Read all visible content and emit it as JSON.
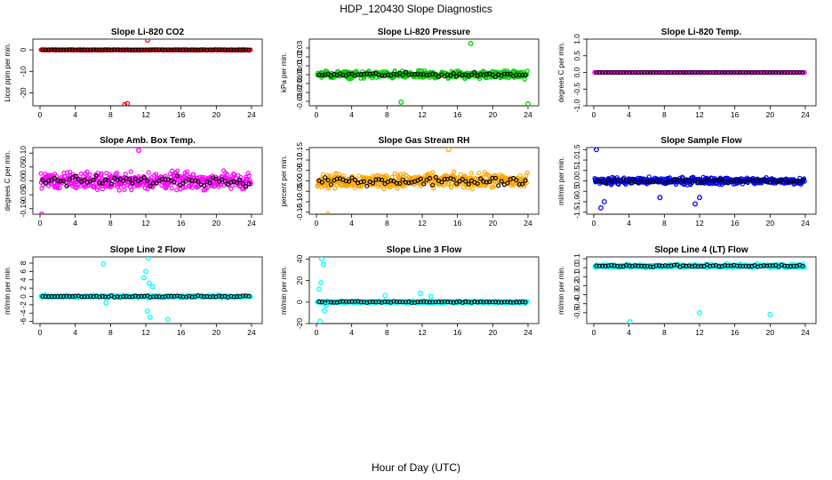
{
  "figure": {
    "title": "HDP_120430  Slope Diagnostics",
    "xlabel": "Hour of Day (UTC)"
  },
  "chart_data": [
    {
      "type": "scatter",
      "title": "Slope Li-820 CO2",
      "ylabel": "Licor ppm per min.",
      "color": "#ff0000",
      "xlim": [
        0,
        24
      ],
      "xticks": [
        0,
        4,
        8,
        12,
        16,
        20,
        24
      ],
      "ylim": [
        -26,
        5
      ],
      "yticks": [
        0,
        -10,
        -20
      ],
      "base": 0,
      "noise": 0.25,
      "outliers": [
        [
          12.2,
          4.5
        ],
        [
          9.6,
          -25.5
        ],
        [
          9.9,
          -25
        ]
      ]
    },
    {
      "type": "scatter",
      "title": "Slope Li-820 Pressure",
      "ylabel": "kPa per min.",
      "color": "#00cc00",
      "xlim": [
        0,
        24
      ],
      "xticks": [
        0,
        4,
        8,
        12,
        16,
        20,
        24
      ],
      "ylim": [
        -0.035,
        0.04
      ],
      "yticks": [
        0.03,
        0.02,
        0.01,
        0.0,
        -0.01,
        -0.02,
        -0.03
      ],
      "base": 0,
      "noise": 0.006,
      "outliers": [
        [
          17.5,
          0.035
        ],
        [
          24,
          -0.033
        ],
        [
          9.6,
          -0.031
        ]
      ]
    },
    {
      "type": "scatter",
      "title": "Slope Li-820 Temp.",
      "ylabel": "degrees C per min.",
      "color": "#ff00ff",
      "xlim": [
        0,
        24
      ],
      "xticks": [
        0,
        4,
        8,
        12,
        16,
        20,
        24
      ],
      "ylim": [
        -1.0,
        1.0
      ],
      "yticks": [
        1.0,
        0.5,
        0.0,
        -0.5,
        -1.0
      ],
      "base": 0,
      "noise": 0.0,
      "outliers": []
    },
    {
      "type": "scatter",
      "title": "Slope Amb. Box Temp.",
      "ylabel": "degrees C per min.",
      "color": "#ff00ff",
      "xlim": [
        0,
        24
      ],
      "xticks": [
        0,
        4,
        8,
        12,
        16,
        20,
        24
      ],
      "ylim": [
        -0.12,
        0.12
      ],
      "yticks": [
        0.1,
        0.05,
        0.0,
        -0.05,
        -0.1
      ],
      "base": 0,
      "noise": 0.045,
      "outliers": [
        [
          11.2,
          0.11
        ],
        [
          0.2,
          -0.12
        ]
      ]
    },
    {
      "type": "scatter",
      "title": "Slope Gas Stream RH",
      "ylabel": "percent per min.",
      "color": "#ffa500",
      "xlim": [
        0,
        24
      ],
      "xticks": [
        0,
        4,
        8,
        12,
        16,
        20,
        24
      ],
      "ylim": [
        -0.16,
        0.16
      ],
      "yticks": [
        0.15,
        0.1,
        0.05,
        0.0,
        -0.05,
        -0.1,
        -0.15
      ],
      "base": 0,
      "noise": 0.05,
      "outliers": [
        [
          1.3,
          -0.16
        ],
        [
          15.0,
          0.15
        ]
      ]
    },
    {
      "type": "scatter",
      "title": "Slope Sample Flow",
      "ylabel": "ml/min per min.",
      "color": "#0000ff",
      "xlim": [
        0,
        24
      ],
      "xticks": [
        0,
        4,
        8,
        12,
        16,
        20,
        24
      ],
      "ylim": [
        -1.6,
        1.6
      ],
      "yticks": [
        1.5,
        1.0,
        0.5,
        0.0,
        -0.5,
        -1.0,
        -1.5
      ],
      "base": 0,
      "noise": 0.25,
      "outliers": [
        [
          0.3,
          1.5
        ],
        [
          0.8,
          -1.3
        ],
        [
          1.2,
          -1.0
        ],
        [
          12.0,
          -0.8
        ],
        [
          11.5,
          -1.1
        ],
        [
          7.5,
          -0.8
        ]
      ]
    },
    {
      "type": "scatter",
      "title": "Slope Line 2 Flow",
      "ylabel": "ml/min per min.",
      "color": "#00ffff",
      "xlim": [
        0,
        24
      ],
      "xticks": [
        0,
        4,
        8,
        12,
        16,
        20,
        24
      ],
      "ylim": [
        -6.5,
        9.5
      ],
      "yticks": [
        8,
        6,
        4,
        2,
        0,
        -2,
        -4,
        -6
      ],
      "base": 0,
      "noise": 0.45,
      "outliers": [
        [
          7.2,
          7.8
        ],
        [
          12.3,
          9.2
        ],
        [
          12.0,
          6.0
        ],
        [
          11.8,
          4.5
        ],
        [
          12.4,
          3.2
        ],
        [
          12.8,
          2.3
        ],
        [
          12.2,
          -3.5
        ],
        [
          12.5,
          -5.0
        ],
        [
          14.5,
          -5.5
        ],
        [
          7.5,
          -1.5
        ]
      ]
    },
    {
      "type": "scatter",
      "title": "Slope Line 3 Flow",
      "ylabel": "ml/min per min.",
      "color": "#00ffff",
      "xlim": [
        0,
        24
      ],
      "xticks": [
        0,
        4,
        8,
        12,
        16,
        20,
        24
      ],
      "ylim": [
        -20,
        42
      ],
      "yticks": [
        40,
        20,
        0,
        -20
      ],
      "base": 0,
      "noise": 1.5,
      "outliers": [
        [
          0.6,
          40
        ],
        [
          0.8,
          35
        ],
        [
          0.5,
          18
        ],
        [
          0.3,
          12
        ],
        [
          0.9,
          -8
        ],
        [
          0.4,
          -18
        ],
        [
          1.1,
          -3
        ],
        [
          11.8,
          8
        ],
        [
          13.0,
          5
        ],
        [
          7.8,
          6
        ]
      ]
    },
    {
      "type": "scatter",
      "title": "Slope Line 4 (LT) Flow",
      "ylabel": "ml/min per min.",
      "color": "#00ffff",
      "xlim": [
        0,
        24
      ],
      "xticks": [
        0,
        4,
        8,
        12,
        16,
        20,
        24
      ],
      "ylim": [
        -0.62,
        0.12
      ],
      "yticks": [
        0.1,
        0.0,
        -0.1,
        -0.2,
        -0.3,
        -0.4,
        -0.5
      ],
      "base": 0.02,
      "noise": 0.03,
      "outliers": [
        [
          4.1,
          -0.6
        ],
        [
          12.0,
          -0.5
        ],
        [
          20.0,
          -0.52
        ]
      ]
    }
  ]
}
